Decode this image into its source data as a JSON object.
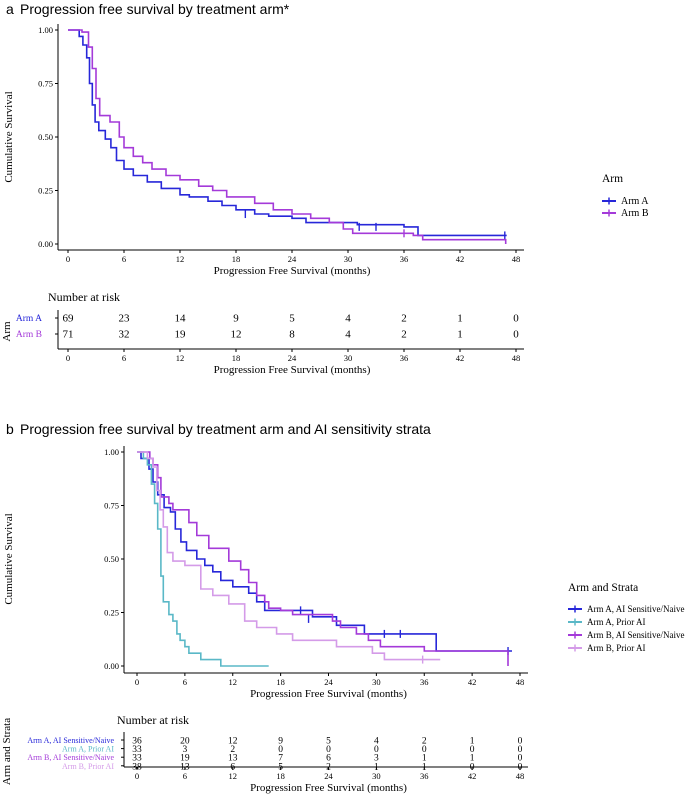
{
  "panel_a": {
    "letter": "a",
    "title": "Progression free survival by treatment arm*",
    "risk_title": "Number at risk",
    "risk_ylabel": "Arm",
    "risk_xlabel": "Progression Free Survival (months)"
  },
  "panel_b": {
    "letter": "b",
    "title": "Progression free survival by treatment arm and AI sensitivity strata",
    "risk_title": "Number at risk",
    "risk_ylabel": "Arm and Strata",
    "risk_xlabel": "Progression Free Survival (months)"
  },
  "chart_data": [
    {
      "type": "line",
      "subtype": "kaplan-meier",
      "title": "Progression free survival by treatment arm*",
      "xlabel": "Progression Free Survival (months)",
      "ylabel": "Cumulative Survival",
      "xlim": [
        0,
        48
      ],
      "ylim": [
        0,
        1
      ],
      "xticks": [
        0,
        6,
        12,
        18,
        24,
        30,
        36,
        42,
        48
      ],
      "yticks": [
        "0.00",
        "0.25",
        "0.50",
        "0.75",
        "1.00"
      ],
      "grid": false,
      "legend_title": "Arm",
      "legend_position": "right",
      "series": [
        {
          "name": "Arm A",
          "color": "#2727d9",
          "steps": [
            [
              0,
              1.0
            ],
            [
              1.2,
              0.97
            ],
            [
              1.6,
              0.93
            ],
            [
              2.0,
              0.87
            ],
            [
              2.3,
              0.75
            ],
            [
              2.6,
              0.65
            ],
            [
              2.9,
              0.57
            ],
            [
              3.3,
              0.53
            ],
            [
              4.0,
              0.49
            ],
            [
              4.6,
              0.45
            ],
            [
              5.2,
              0.39
            ],
            [
              6.0,
              0.35
            ],
            [
              7.0,
              0.32
            ],
            [
              8.5,
              0.29
            ],
            [
              10.0,
              0.26
            ],
            [
              12.0,
              0.23
            ],
            [
              13.0,
              0.22
            ],
            [
              15.0,
              0.2
            ],
            [
              16.5,
              0.18
            ],
            [
              18.0,
              0.16
            ],
            [
              20.0,
              0.14
            ],
            [
              21.5,
              0.13
            ],
            [
              24.0,
              0.12
            ],
            [
              25.5,
              0.1
            ],
            [
              31.0,
              0.09
            ],
            [
              36.0,
              0.08
            ],
            [
              37.5,
              0.04
            ],
            [
              47.0,
              0.04
            ]
          ],
          "censor": [
            [
              19.0,
              0.14
            ],
            [
              31.2,
              0.08
            ],
            [
              33.0,
              0.08
            ],
            [
              46.8,
              0.04
            ]
          ]
        },
        {
          "name": "Arm B",
          "color": "#a43ad9",
          "steps": [
            [
              0,
              1.0
            ],
            [
              1.5,
              0.99
            ],
            [
              2.2,
              0.92
            ],
            [
              2.6,
              0.82
            ],
            [
              3.0,
              0.68
            ],
            [
              3.4,
              0.6
            ],
            [
              4.5,
              0.57
            ],
            [
              5.5,
              0.5
            ],
            [
              6.0,
              0.45
            ],
            [
              7.0,
              0.41
            ],
            [
              8.0,
              0.38
            ],
            [
              9.0,
              0.35
            ],
            [
              10.5,
              0.32
            ],
            [
              12.0,
              0.3
            ],
            [
              14.0,
              0.27
            ],
            [
              15.5,
              0.25
            ],
            [
              17.0,
              0.22
            ],
            [
              20.0,
              0.19
            ],
            [
              22.0,
              0.16
            ],
            [
              24.0,
              0.14
            ],
            [
              26.0,
              0.12
            ],
            [
              28.0,
              0.1
            ],
            [
              29.5,
              0.07
            ],
            [
              30.5,
              0.05
            ],
            [
              37.0,
              0.04
            ],
            [
              38.0,
              0.02
            ],
            [
              46.5,
              0.02
            ],
            [
              46.9,
              0.0
            ]
          ],
          "censor": [
            [
              36.0,
              0.05
            ]
          ]
        }
      ],
      "risk_table": {
        "title": "Number at risk",
        "ylabel": "Arm",
        "xlabel": "Progression Free Survival (months)",
        "times": [
          0,
          6,
          12,
          18,
          24,
          30,
          36,
          42,
          48
        ],
        "rows": [
          {
            "label": "Arm A",
            "color": "#2727d9",
            "values": [
              69,
              23,
              14,
              9,
              5,
              4,
              2,
              1,
              0
            ]
          },
          {
            "label": "Arm B",
            "color": "#a43ad9",
            "values": [
              71,
              32,
              19,
              12,
              8,
              4,
              2,
              1,
              0
            ]
          }
        ]
      }
    },
    {
      "type": "line",
      "subtype": "kaplan-meier",
      "title": "Progression free survival by treatment arm and AI sensitivity strata",
      "xlabel": "Progression Free Survival (months)",
      "ylabel": "Cumulative Survival",
      "xlim": [
        0,
        48
      ],
      "ylim": [
        0,
        1
      ],
      "xticks": [
        0,
        6,
        12,
        18,
        24,
        30,
        36,
        42,
        48
      ],
      "yticks": [
        "0.00",
        "0.25",
        "0.50",
        "0.75",
        "1.00"
      ],
      "grid": false,
      "legend_title": "Arm and Strata",
      "legend_position": "right",
      "series": [
        {
          "name": "Arm A, AI Sensitive/Naive",
          "color": "#2727d9",
          "steps": [
            [
              0,
              1.0
            ],
            [
              0.5,
              0.97
            ],
            [
              1.5,
              0.92
            ],
            [
              2.0,
              0.86
            ],
            [
              2.6,
              0.8
            ],
            [
              3.4,
              0.74
            ],
            [
              4.2,
              0.72
            ],
            [
              4.8,
              0.64
            ],
            [
              5.5,
              0.58
            ],
            [
              6.2,
              0.54
            ],
            [
              7.5,
              0.5
            ],
            [
              8.5,
              0.47
            ],
            [
              9.5,
              0.44
            ],
            [
              10.5,
              0.4
            ],
            [
              12.0,
              0.37
            ],
            [
              14.0,
              0.34
            ],
            [
              15.0,
              0.3
            ],
            [
              16.0,
              0.26
            ],
            [
              22.0,
              0.23
            ],
            [
              25.0,
              0.19
            ],
            [
              28.5,
              0.15
            ],
            [
              33.0,
              0.15
            ],
            [
              36.0,
              0.15
            ],
            [
              37.5,
              0.07
            ],
            [
              47.0,
              0.07
            ]
          ],
          "censor": [
            [
              20.5,
              0.26
            ],
            [
              21.5,
              0.22
            ],
            [
              31.0,
              0.15
            ],
            [
              33.0,
              0.15
            ],
            [
              46.5,
              0.07
            ]
          ]
        },
        {
          "name": "Arm A, Prior AI",
          "color": "#5ab8c7",
          "steps": [
            [
              0,
              1.0
            ],
            [
              0.8,
              0.97
            ],
            [
              1.3,
              0.94
            ],
            [
              1.8,
              0.85
            ],
            [
              2.2,
              0.76
            ],
            [
              2.6,
              0.64
            ],
            [
              3.0,
              0.42
            ],
            [
              3.3,
              0.3
            ],
            [
              4.0,
              0.24
            ],
            [
              4.5,
              0.21
            ],
            [
              5.0,
              0.15
            ],
            [
              5.4,
              0.12
            ],
            [
              6.0,
              0.09
            ],
            [
              6.5,
              0.06
            ],
            [
              8.0,
              0.03
            ],
            [
              10.5,
              0.0
            ],
            [
              16.5,
              0.0
            ]
          ],
          "censor": []
        },
        {
          "name": "Arm B, AI Sensitive/Naive",
          "color": "#a43ad9",
          "steps": [
            [
              0,
              1.0
            ],
            [
              1.6,
              0.97
            ],
            [
              2.0,
              0.94
            ],
            [
              2.6,
              0.88
            ],
            [
              3.0,
              0.79
            ],
            [
              4.0,
              0.76
            ],
            [
              4.5,
              0.73
            ],
            [
              6.0,
              0.73
            ],
            [
              6.5,
              0.67
            ],
            [
              7.5,
              0.61
            ],
            [
              9.0,
              0.55
            ],
            [
              11.5,
              0.49
            ],
            [
              13.0,
              0.45
            ],
            [
              14.0,
              0.39
            ],
            [
              15.0,
              0.33
            ],
            [
              16.0,
              0.3
            ],
            [
              16.5,
              0.27
            ],
            [
              18.0,
              0.26
            ],
            [
              19.5,
              0.24
            ],
            [
              24.5,
              0.21
            ],
            [
              25.5,
              0.18
            ],
            [
              27.5,
              0.15
            ],
            [
              29.0,
              0.12
            ],
            [
              30.5,
              0.09
            ],
            [
              36.0,
              0.07
            ],
            [
              46.5,
              0.0
            ]
          ],
          "censor": []
        },
        {
          "name": "Arm B, Prior AI",
          "color": "#d49be8",
          "steps": [
            [
              0,
              1.0
            ],
            [
              1.3,
              0.97
            ],
            [
              2.0,
              0.93
            ],
            [
              2.5,
              0.82
            ],
            [
              2.9,
              0.73
            ],
            [
              3.3,
              0.65
            ],
            [
              3.8,
              0.53
            ],
            [
              4.5,
              0.49
            ],
            [
              6.0,
              0.47
            ],
            [
              8.0,
              0.36
            ],
            [
              9.5,
              0.33
            ],
            [
              11.5,
              0.29
            ],
            [
              13.5,
              0.21
            ],
            [
              15.0,
              0.18
            ],
            [
              17.5,
              0.15
            ],
            [
              19.5,
              0.12
            ],
            [
              25.0,
              0.09
            ],
            [
              29.5,
              0.06
            ],
            [
              31.0,
              0.03
            ],
            [
              38.0,
              0.03
            ]
          ],
          "censor": [
            [
              35.8,
              0.03
            ]
          ]
        }
      ],
      "risk_table": {
        "title": "Number at risk",
        "ylabel": "Arm and Strata",
        "xlabel": "Progression Free Survival (months)",
        "times": [
          0,
          6,
          12,
          18,
          24,
          30,
          36,
          42,
          48
        ],
        "rows": [
          {
            "label": "Arm A, AI Sensitive/Naive",
            "color": "#2727d9",
            "values": [
              36,
              20,
              12,
              9,
              5,
              4,
              2,
              1,
              0
            ]
          },
          {
            "label": "Arm A, Prior AI",
            "color": "#5ab8c7",
            "values": [
              33,
              3,
              2,
              0,
              0,
              0,
              0,
              0,
              0
            ]
          },
          {
            "label": "Arm B, AI Sensitive/Naive",
            "color": "#a43ad9",
            "values": [
              33,
              19,
              13,
              7,
              6,
              3,
              1,
              1,
              0
            ]
          },
          {
            "label": "Arm B, Prior AI",
            "color": "#d49be8",
            "values": [
              38,
              13,
              6,
              5,
              2,
              1,
              1,
              0,
              0
            ]
          }
        ]
      }
    }
  ]
}
